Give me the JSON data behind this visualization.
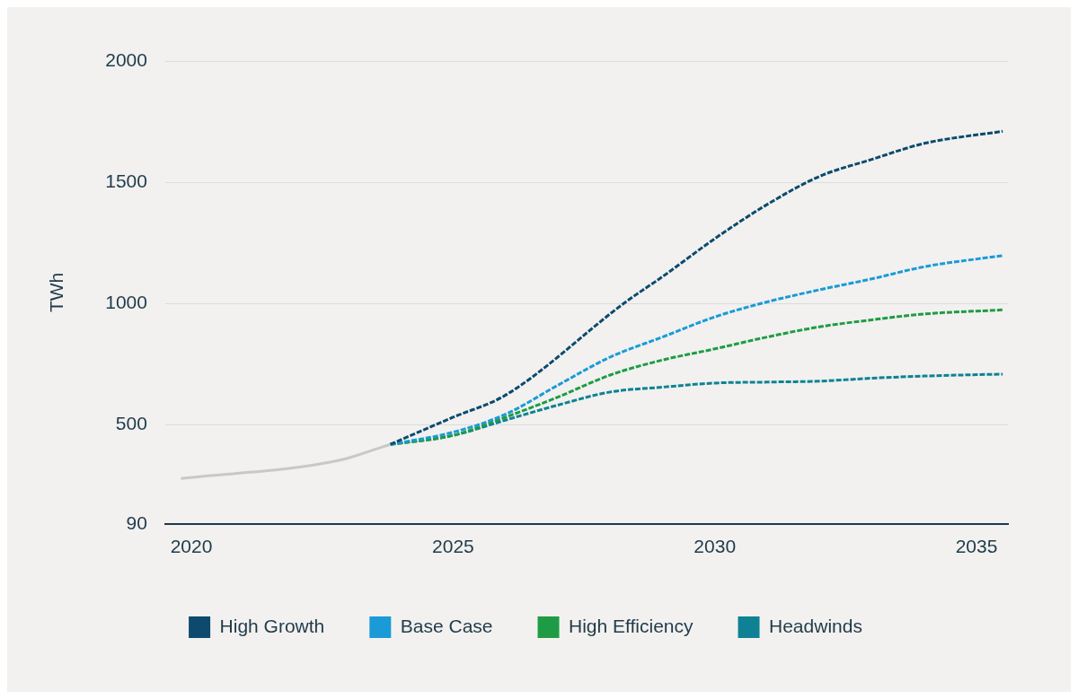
{
  "chart_data": {
    "type": "line",
    "ylabel": "TWh",
    "xlim": [
      2019.5,
      2035.6
    ],
    "xticks": [
      2020,
      2025,
      2030,
      2035
    ],
    "ylim": [
      90,
      2000
    ],
    "yticks": [
      90,
      500,
      1000,
      1500,
      2000
    ],
    "grid": "y",
    "legend": "bottom",
    "marker": "none",
    "series": [
      {
        "color": "#c8c8c8",
        "line_style": "solid",
        "x": [
          2019.8,
          2022.8,
          2023.8
        ],
        "values": [
          277,
          351,
          418
        ]
      },
      {
        "name": "High Growth",
        "color": "#0d4a6e",
        "line_style": "dashed",
        "x": [
          2023.8,
          2025,
          2026,
          2028.3,
          2029,
          2030,
          2031,
          2032,
          2033,
          2034,
          2035.5
        ],
        "values": [
          418,
          530,
          621,
          1006,
          1110,
          1267,
          1408,
          1524,
          1594,
          1660,
          1710
        ]
      },
      {
        "name": "Base Case",
        "color": "#1a9bd7",
        "line_style": "dashed",
        "x": [
          2023.8,
          2025,
          2026,
          2027,
          2028,
          2029,
          2030,
          2031,
          2032,
          2033,
          2034,
          2035.5
        ],
        "values": [
          418,
          468,
          542,
          662,
          778,
          861,
          944,
          1006,
          1056,
          1101,
          1151,
          1197
        ]
      },
      {
        "name": "High Efficiency",
        "color": "#1e9c45",
        "line_style": "dashed",
        "x": [
          2023.8,
          2025,
          2026,
          2027,
          2028,
          2029,
          2030,
          2031,
          2032,
          2033,
          2034,
          2035.5
        ],
        "values": [
          418,
          455,
          530,
          613,
          704,
          766,
          812,
          861,
          903,
          932,
          956,
          973
        ]
      },
      {
        "name": "Headwinds",
        "color": "#0e8294",
        "line_style": "dashed",
        "x": [
          2023.8,
          2025,
          2026,
          2027,
          2028,
          2029,
          2030,
          2031,
          2032,
          2033,
          2034,
          2035.5
        ],
        "values": [
          418,
          455,
          518,
          580,
          634,
          654,
          671,
          675,
          679,
          691,
          700,
          708
        ]
      }
    ]
  }
}
